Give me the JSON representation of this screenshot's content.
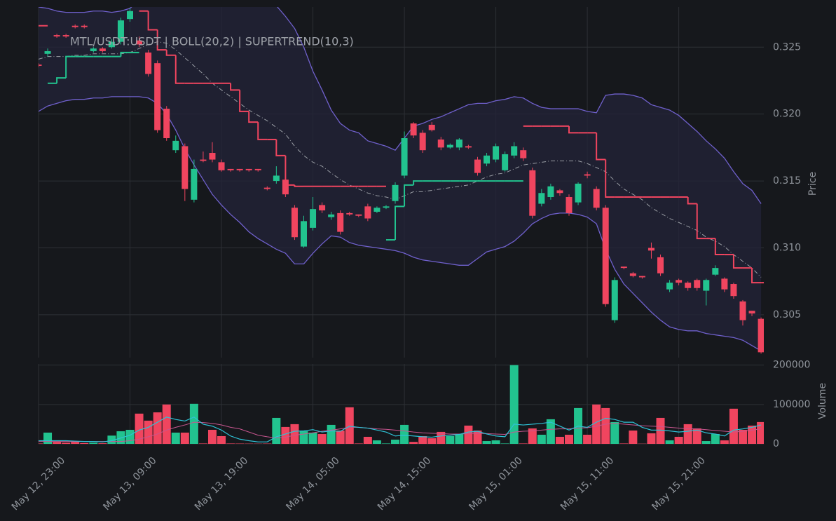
{
  "chart_data": [
    {
      "type": "candlestick",
      "title": "MTL/USDT:USDT | BOLL(20,2) | SUPERTREND(10,3)",
      "ylabel": "Price",
      "ylim": [
        0.3018,
        0.328
      ],
      "yticks": [
        0.305,
        {
          "value": 0.31,
          "label": "0.310"
        },
        0.315,
        {
          "value": 0.32,
          "label": "0.320"
        },
        0.325
      ],
      "grid": true,
      "up_color": "#22c38f",
      "down_color": "#f0455f",
      "open": [
        0.3237,
        0.3245,
        0.3259,
        0.3259,
        0.3266,
        0.3266,
        0.3247,
        0.3249,
        0.325,
        0.3254,
        0.3271,
        0.3255,
        0.3246,
        0.3238,
        0.3204,
        0.3173,
        0.3176,
        0.3136,
        0.3166,
        0.3171,
        0.3164,
        0.3159,
        0.3159,
        0.3159,
        0.3159,
        0.3145,
        0.315,
        0.3151,
        0.313,
        0.3101,
        0.3115,
        0.3132,
        0.3123,
        0.3126,
        0.3126,
        0.3125,
        0.3131,
        0.3127,
        0.313,
        0.3135,
        0.3154,
        0.3193,
        0.3186,
        0.3192,
        0.3181,
        0.3175,
        0.3175,
        0.3176,
        0.3166,
        0.3163,
        0.3166,
        0.3158,
        0.3169,
        0.3173,
        0.3158,
        0.3133,
        0.3138,
        0.3143,
        0.3138,
        0.3134,
        0.3155,
        0.3144,
        0.313,
        0.3046,
        0.3086,
        0.3081,
        0.3079,
        0.31,
        0.3093,
        0.3069,
        0.3076,
        0.3074,
        0.3076,
        0.3068,
        0.308,
        0.3077,
        0.3073,
        0.306,
        0.3053,
        0.3047
      ],
      "high": [
        0.3238,
        0.3249,
        0.326,
        0.326,
        0.3267,
        0.3267,
        0.325,
        0.325,
        0.3256,
        0.3272,
        0.3279,
        0.3258,
        0.3248,
        0.324,
        0.3206,
        0.3184,
        0.3178,
        0.3166,
        0.3172,
        0.3179,
        0.3166,
        0.3159,
        0.3159,
        0.3159,
        0.3159,
        0.3146,
        0.3161,
        0.3152,
        0.3132,
        0.3124,
        0.3138,
        0.3134,
        0.3127,
        0.3128,
        0.3127,
        0.3125,
        0.3133,
        0.3131,
        0.3132,
        0.3149,
        0.3187,
        0.3194,
        0.3188,
        0.3194,
        0.3183,
        0.3178,
        0.3182,
        0.3177,
        0.3168,
        0.3171,
        0.3178,
        0.3172,
        0.3179,
        0.3175,
        0.316,
        0.3144,
        0.3148,
        0.3144,
        0.314,
        0.3149,
        0.3157,
        0.3146,
        0.3132,
        0.3078,
        0.3086,
        0.3082,
        0.3079,
        0.3104,
        0.3095,
        0.3076,
        0.3077,
        0.3075,
        0.3077,
        0.3077,
        0.3087,
        0.3078,
        0.3074,
        0.3061,
        0.3053,
        0.3048
      ],
      "low": [
        0.3235,
        0.3243,
        0.3257,
        0.3257,
        0.3264,
        0.3264,
        0.3246,
        0.3246,
        0.3249,
        0.3252,
        0.3269,
        0.325,
        0.3228,
        0.3186,
        0.318,
        0.3171,
        0.3135,
        0.3134,
        0.3164,
        0.3164,
        0.3157,
        0.3157,
        0.3157,
        0.3157,
        0.3157,
        0.3143,
        0.3148,
        0.3138,
        0.3106,
        0.31,
        0.3113,
        0.3126,
        0.3121,
        0.311,
        0.3124,
        0.3123,
        0.312,
        0.3126,
        0.3129,
        0.3133,
        0.3152,
        0.3182,
        0.3171,
        0.3187,
        0.3173,
        0.3174,
        0.3173,
        0.3174,
        0.3154,
        0.3161,
        0.3164,
        0.3157,
        0.3167,
        0.3165,
        0.3122,
        0.3131,
        0.3136,
        0.3139,
        0.3124,
        0.3132,
        0.3152,
        0.3128,
        0.3056,
        0.3044,
        0.3084,
        0.3078,
        0.3077,
        0.3092,
        0.3079,
        0.3067,
        0.3072,
        0.3068,
        0.3068,
        0.3057,
        0.3079,
        0.3067,
        0.3062,
        0.3042,
        0.3049,
        0.3021
      ],
      "close": [
        0.3236,
        0.3247,
        0.3258,
        0.3258,
        0.3265,
        0.3265,
        0.3249,
        0.3247,
        0.3254,
        0.327,
        0.3277,
        0.3252,
        0.323,
        0.3188,
        0.3182,
        0.318,
        0.3144,
        0.3159,
        0.3165,
        0.3166,
        0.3158,
        0.3158,
        0.3158,
        0.3158,
        0.3158,
        0.3144,
        0.3154,
        0.314,
        0.3108,
        0.312,
        0.3129,
        0.3128,
        0.3125,
        0.3112,
        0.3125,
        0.3124,
        0.3122,
        0.313,
        0.3131,
        0.3147,
        0.3182,
        0.3184,
        0.3173,
        0.3188,
        0.3175,
        0.3177,
        0.3181,
        0.3175,
        0.3156,
        0.3169,
        0.3176,
        0.317,
        0.3176,
        0.3167,
        0.3124,
        0.3141,
        0.3146,
        0.3141,
        0.3126,
        0.3148,
        0.3154,
        0.313,
        0.3058,
        0.3076,
        0.3085,
        0.3079,
        0.3078,
        0.3098,
        0.3081,
        0.3074,
        0.3074,
        0.307,
        0.307,
        0.3076,
        0.3085,
        0.3069,
        0.3064,
        0.3046,
        0.3051,
        0.3022
      ],
      "bollinger": {
        "line_color": "#6f60cc",
        "mid_color": "#9a9ea5",
        "fill_color": "#232338",
        "upper": [
          0.328,
          0.3279,
          0.3277,
          0.3276,
          0.3276,
          0.3276,
          0.3277,
          0.3277,
          0.3276,
          0.3277,
          0.3279,
          0.3285,
          0.3292,
          0.33,
          0.3305,
          0.3308,
          0.331,
          0.331,
          0.3309,
          0.3306,
          0.3303,
          0.33,
          0.3297,
          0.3294,
          0.329,
          0.3286,
          0.3281,
          0.3273,
          0.3264,
          0.325,
          0.3232,
          0.3218,
          0.3203,
          0.3193,
          0.3188,
          0.3186,
          0.318,
          0.3178,
          0.3176,
          0.3173,
          0.3182,
          0.3191,
          0.3193,
          0.3196,
          0.3198,
          0.3201,
          0.3204,
          0.3207,
          0.3208,
          0.3208,
          0.321,
          0.3211,
          0.3213,
          0.3212,
          0.3208,
          0.3205,
          0.3204,
          0.3204,
          0.3204,
          0.3204,
          0.3202,
          0.3201,
          0.3214,
          0.3215,
          0.3215,
          0.3214,
          0.3212,
          0.3207,
          0.3205,
          0.3203,
          0.3199,
          0.3193,
          0.3187,
          0.318,
          0.3174,
          0.3167,
          0.3157,
          0.3148,
          0.3143,
          0.3133
        ],
        "middle": [
          0.3241,
          0.3243,
          0.3243,
          0.3243,
          0.3244,
          0.3244,
          0.3245,
          0.3245,
          0.3245,
          0.3245,
          0.3246,
          0.3249,
          0.3252,
          0.3254,
          0.3253,
          0.3248,
          0.3242,
          0.3236,
          0.323,
          0.3223,
          0.3218,
          0.3213,
          0.3208,
          0.3203,
          0.3199,
          0.3195,
          0.319,
          0.3185,
          0.3176,
          0.3169,
          0.3164,
          0.3161,
          0.3156,
          0.3151,
          0.3147,
          0.3144,
          0.3141,
          0.3139,
          0.3138,
          0.3136,
          0.3139,
          0.3142,
          0.3142,
          0.3143,
          0.3144,
          0.3145,
          0.3146,
          0.3147,
          0.315,
          0.3153,
          0.3155,
          0.3156,
          0.3159,
          0.3162,
          0.3163,
          0.3164,
          0.3165,
          0.3165,
          0.3165,
          0.3165,
          0.3163,
          0.316,
          0.3157,
          0.315,
          0.3144,
          0.314,
          0.3136,
          0.313,
          0.3126,
          0.3122,
          0.3119,
          0.3116,
          0.3113,
          0.3108,
          0.3105,
          0.3101,
          0.3095,
          0.309,
          0.3085,
          0.3078
        ],
        "lower": [
          0.3202,
          0.3206,
          0.3208,
          0.321,
          0.3211,
          0.3211,
          0.3212,
          0.3212,
          0.3213,
          0.3213,
          0.3213,
          0.3213,
          0.3212,
          0.3208,
          0.32,
          0.3188,
          0.3174,
          0.3162,
          0.3151,
          0.314,
          0.3132,
          0.3125,
          0.3119,
          0.3112,
          0.3107,
          0.3103,
          0.3099,
          0.3096,
          0.3088,
          0.3088,
          0.3096,
          0.3103,
          0.3109,
          0.3108,
          0.3104,
          0.3102,
          0.3101,
          0.31,
          0.3099,
          0.3098,
          0.3096,
          0.3093,
          0.3091,
          0.309,
          0.3089,
          0.3088,
          0.3087,
          0.3087,
          0.3092,
          0.3097,
          0.3099,
          0.3101,
          0.3105,
          0.3111,
          0.3118,
          0.3122,
          0.3125,
          0.3126,
          0.3126,
          0.3125,
          0.3123,
          0.3118,
          0.3099,
          0.3084,
          0.3073,
          0.3066,
          0.3059,
          0.3052,
          0.3046,
          0.3041,
          0.3039,
          0.3038,
          0.3038,
          0.3036,
          0.3035,
          0.3034,
          0.3033,
          0.3031,
          0.3027,
          0.3023
        ]
      },
      "supertrend": {
        "up_color": "#22c38f",
        "down_color": "#f0455f",
        "up": [
          null,
          0.3223,
          0.3227,
          0.3243,
          0.3243,
          0.3243,
          0.3243,
          0.3243,
          0.3243,
          0.3246,
          0.3246,
          null,
          null,
          null,
          null,
          null,
          null,
          null,
          null,
          null,
          null,
          null,
          null,
          null,
          null,
          null,
          null,
          null,
          null,
          null,
          null,
          null,
          null,
          null,
          null,
          null,
          null,
          null,
          0.3106,
          0.3131,
          0.3147,
          0.315,
          0.315,
          0.315,
          0.315,
          0.315,
          0.315,
          0.315,
          0.315,
          0.315,
          0.315,
          0.315,
          0.315,
          null,
          null,
          null,
          null,
          null,
          null,
          null,
          null,
          null,
          null,
          null,
          null,
          null,
          null,
          null,
          null,
          null,
          null,
          null,
          null,
          null,
          null,
          null,
          null,
          null,
          null,
          null
        ],
        "down": [
          0.3266,
          null,
          null,
          null,
          null,
          null,
          null,
          null,
          null,
          null,
          null,
          0.3277,
          0.3263,
          0.3248,
          0.3244,
          0.3223,
          0.3223,
          0.3223,
          0.3223,
          0.3223,
          0.3223,
          0.3218,
          0.3202,
          0.3194,
          0.3181,
          0.3181,
          0.3169,
          0.3147,
          0.3146,
          0.3146,
          0.3146,
          0.3146,
          0.3146,
          0.3146,
          0.3146,
          0.3146,
          0.3146,
          0.3146,
          null,
          null,
          null,
          null,
          null,
          null,
          null,
          null,
          null,
          null,
          null,
          null,
          null,
          null,
          null,
          0.3191,
          0.3191,
          0.3191,
          0.3191,
          0.3191,
          0.3186,
          0.3186,
          0.3186,
          0.3166,
          0.3138,
          0.3138,
          0.3138,
          0.3138,
          0.3138,
          0.3138,
          0.3138,
          0.3138,
          0.3138,
          0.3133,
          0.3107,
          0.3107,
          0.3095,
          0.3095,
          0.3085,
          0.3085,
          0.3074,
          0.3074
        ]
      }
    },
    {
      "type": "bar",
      "ylabel": "Volume",
      "ylim": [
        0,
        203000
      ],
      "yticks": [
        0,
        100000,
        200000
      ],
      "grid": true,
      "categories": [
        "May 12, 23:00",
        null,
        null,
        null,
        null,
        null,
        null,
        null,
        null,
        null,
        "May 13, 09:00",
        null,
        null,
        null,
        null,
        null,
        null,
        null,
        null,
        null,
        "May 13, 19:00",
        null,
        null,
        null,
        null,
        null,
        null,
        null,
        null,
        null,
        "May 14, 05:00",
        null,
        null,
        null,
        null,
        null,
        null,
        null,
        null,
        null,
        "May 14, 15:00",
        null,
        null,
        null,
        null,
        null,
        null,
        null,
        null,
        null,
        "May 15, 01:00",
        null,
        null,
        null,
        null,
        null,
        null,
        null,
        null,
        null,
        "May 15, 11:00",
        null,
        null,
        null,
        null,
        null,
        null,
        null,
        null,
        null,
        "May 15, 21:00",
        null,
        null,
        null,
        null,
        null,
        null,
        null,
        null,
        null
      ],
      "values": [
        1000,
        28600,
        5000,
        3000,
        5000,
        2000,
        3000,
        1500,
        21000,
        32000,
        35700,
        76800,
        59000,
        80000,
        100000,
        28600,
        28600,
        101800,
        1000,
        35700,
        19600,
        1000,
        800,
        600,
        500,
        800,
        66000,
        42900,
        50000,
        32100,
        28600,
        25000,
        48200,
        33900,
        92900,
        1000,
        17900,
        8900,
        1000,
        10700,
        48200,
        5000,
        19600,
        14300,
        30400,
        19600,
        25000,
        46400,
        33900,
        7100,
        8900,
        1000,
        200000,
        1000,
        39300,
        23200,
        62500,
        17900,
        23200,
        91000,
        23200,
        100000,
        91000,
        55400,
        1000,
        33900,
        500,
        26800,
        66000,
        8900,
        17900,
        50000,
        39300,
        7100,
        25000,
        8900,
        89300,
        35700,
        46400,
        55400
      ],
      "ma_fast": {
        "color": "#2ec2d6",
        "values": [
          8000,
          8000,
          8000,
          8000,
          7000,
          6000,
          6000,
          5000,
          8000,
          15000,
          22000,
          35000,
          42000,
          55000,
          68000,
          62000,
          58000,
          68000,
          50000,
          45000,
          35000,
          20000,
          12000,
          8000,
          5000,
          5000,
          18000,
          25000,
          32000,
          33000,
          36000,
          30000,
          33000,
          32000,
          45000,
          42000,
          40000,
          35000,
          30000,
          20000,
          22000,
          20000,
          18000,
          17000,
          20000,
          22000,
          24000,
          30000,
          32000,
          25000,
          20000,
          18000,
          50000,
          48000,
          50000,
          52000,
          55000,
          45000,
          35000,
          45000,
          42000,
          55000,
          65000,
          62000,
          55000,
          55000,
          42000,
          35000,
          35000,
          33000,
          30000,
          32000,
          35000,
          28000,
          25000,
          20000,
          35000,
          38000,
          42000,
          48000
        ]
      },
      "ma_slow": {
        "color": "#c7568f",
        "values": [
          6000,
          6000,
          6000,
          6000,
          6000,
          6000,
          6000,
          6000,
          6000,
          6000,
          8000,
          12000,
          18000,
          25000,
          35000,
          42000,
          48000,
          55000,
          54000,
          52000,
          48000,
          42000,
          38000,
          30000,
          22000,
          18000,
          15000,
          17000,
          22000,
          25000,
          28000,
          32000,
          35000,
          38000,
          42000,
          42000,
          40000,
          38000,
          37000,
          35000,
          33000,
          30000,
          28000,
          27000,
          26000,
          25000,
          25000,
          26000,
          27000,
          26000,
          25000,
          24000,
          30000,
          32000,
          33000,
          35000,
          37000,
          38000,
          38000,
          40000,
          41000,
          45000,
          50000,
          52000,
          50000,
          48000,
          46000,
          45000,
          44000,
          42000,
          40000,
          38000,
          38000,
          36000,
          34000,
          32000,
          30000,
          32000,
          35000,
          38000
        ]
      }
    }
  ]
}
